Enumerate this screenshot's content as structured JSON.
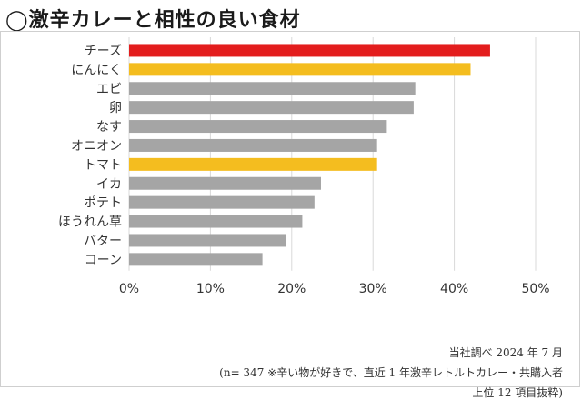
{
  "title": "◯激辛カレーと相性の良い食材",
  "notes": {
    "source": "当社調べ 2024 年 7 月",
    "sample": "(n= 347 ※辛い物が好きで、直近 1 年激辛レトルトカレー・共購入者",
    "selection": "上位 12 項目抜粋)"
  },
  "colors": {
    "top": "#e31d1d",
    "highlight": "#f4bd1f",
    "default": "#a5a5a5",
    "grid": "#d9d9d9"
  },
  "chart_data": {
    "type": "bar",
    "orientation": "horizontal",
    "categories": [
      "チーズ",
      "にんにく",
      "エビ",
      "卵",
      "なす",
      "オニオン",
      "トマト",
      "イカ",
      "ポテト",
      "ほうれん草",
      "バター",
      "コーン"
    ],
    "values": [
      44.4,
      42.0,
      35.2,
      35.0,
      31.7,
      30.5,
      30.5,
      23.6,
      22.8,
      21.3,
      19.3,
      16.4
    ],
    "bar_colors": [
      "top",
      "highlight",
      "default",
      "default",
      "default",
      "default",
      "highlight",
      "default",
      "default",
      "default",
      "default",
      "default"
    ],
    "xlim": [
      0,
      50
    ],
    "xticks": [
      "0%",
      "10%",
      "20%",
      "30%",
      "40%",
      "50%"
    ],
    "grid": true
  }
}
